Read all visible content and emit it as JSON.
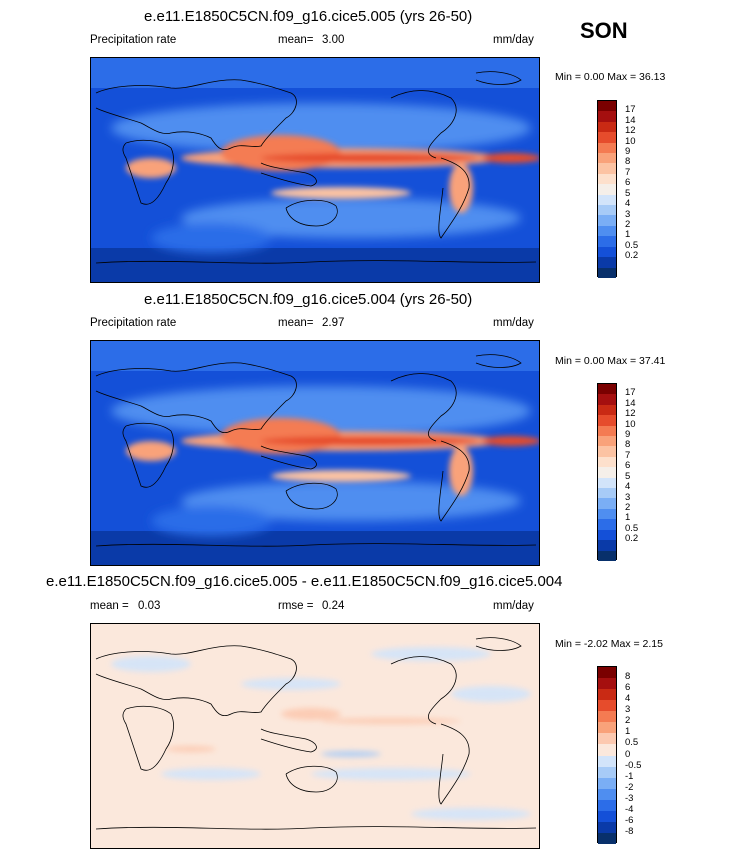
{
  "season": "SON",
  "units": "mm/day",
  "colors": {
    "precip": [
      "#08306b",
      "#0a3aa8",
      "#1450d8",
      "#2c6de8",
      "#4f8ef0",
      "#7aaef5",
      "#a7cbf7",
      "#d2e4fa",
      "#f5efe9",
      "#fde0cc",
      "#fcc3a3",
      "#f9a27a",
      "#f47b52",
      "#e64c2c",
      "#c92a14",
      "#a50f0f",
      "#7a0000"
    ],
    "diff": [
      "#08306b",
      "#0a3aa8",
      "#1450d8",
      "#2c6de8",
      "#4f8ef0",
      "#7aaef5",
      "#a7cbf7",
      "#d2e4fa",
      "#fbe8dc",
      "#fcc9b0",
      "#f9a27a",
      "#f47b52",
      "#e64c2c",
      "#c92a14",
      "#a50f0f",
      "#7a0000"
    ]
  },
  "panels": [
    {
      "title": "e.e11.E1850C5CN.f09_g16.cice5.005 (yrs 26-50)",
      "left_label": "Precipitation rate",
      "stat_label": "mean=",
      "stat_value": "3.00",
      "units": "mm/day",
      "minmax": "Min =   0.00 Max =  36.13",
      "levels": [
        "17",
        "14",
        "12",
        "10",
        "9",
        "8",
        "7",
        "6",
        "5",
        "4",
        "3",
        "2",
        "1",
        "0.5",
        "0.2"
      ]
    },
    {
      "title": "e.e11.E1850C5CN.f09_g16.cice5.004 (yrs 26-50)",
      "left_label": "Precipitation rate",
      "stat_label": "mean=",
      "stat_value": "2.97",
      "units": "mm/day",
      "minmax": "Min =   0.00 Max =  37.41",
      "levels": [
        "17",
        "14",
        "12",
        "10",
        "9",
        "8",
        "7",
        "6",
        "5",
        "4",
        "3",
        "2",
        "1",
        "0.5",
        "0.2"
      ]
    },
    {
      "title": "e.e11.E1850C5CN.f09_g16.cice5.005 - e.e11.E1850C5CN.f09_g16.cice5.004",
      "left_label": "mean =",
      "left_value": "0.03",
      "stat_label": "rmse =",
      "stat_value": "0.24",
      "units": "mm/day",
      "minmax": "Min =  -2.02 Max =   2.15",
      "levels": [
        "8",
        "6",
        "4",
        "3",
        "2",
        "1",
        "0.5",
        "0",
        "-0.5",
        "-1",
        "-2",
        "-3",
        "-4",
        "-6",
        "-8"
      ]
    }
  ],
  "chart_data": [
    {
      "type": "heatmap",
      "title": "e.e11.E1850C5CN.f09_g16.cice5.005 (yrs 26-50)",
      "field": "Precipitation rate",
      "units": "mm/day",
      "mean": 3.0,
      "min": 0.0,
      "max": 36.13,
      "contour_levels": [
        0.2,
        0.5,
        1,
        2,
        3,
        4,
        5,
        6,
        7,
        8,
        9,
        10,
        12,
        14,
        17
      ]
    },
    {
      "type": "heatmap",
      "title": "e.e11.E1850C5CN.f09_g16.cice5.004 (yrs 26-50)",
      "field": "Precipitation rate",
      "units": "mm/day",
      "mean": 2.97,
      "min": 0.0,
      "max": 37.41,
      "contour_levels": [
        0.2,
        0.5,
        1,
        2,
        3,
        4,
        5,
        6,
        7,
        8,
        9,
        10,
        12,
        14,
        17
      ]
    },
    {
      "type": "heatmap",
      "title": "e.e11.E1850C5CN.f09_g16.cice5.005 - e.e11.E1850C5CN.f09_g16.cice5.004",
      "units": "mm/day",
      "mean": 0.03,
      "rmse": 0.24,
      "min": -2.02,
      "max": 2.15,
      "contour_levels": [
        -8,
        -6,
        -4,
        -3,
        -2,
        -1,
        -0.5,
        0,
        0.5,
        1,
        2,
        3,
        4,
        6,
        8
      ]
    }
  ]
}
